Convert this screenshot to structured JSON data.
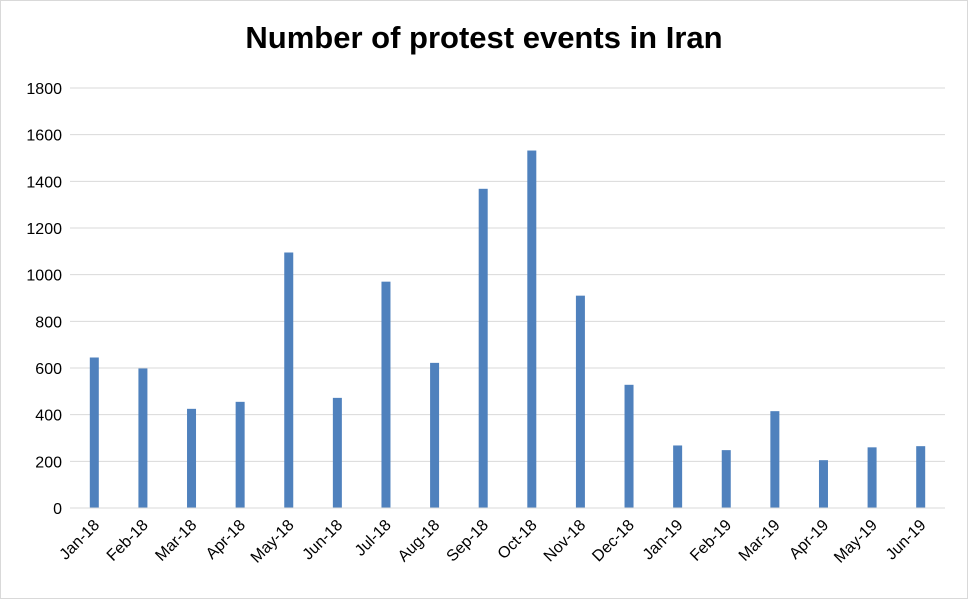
{
  "chart_data": {
    "type": "bar",
    "title": "Number of protest events in Iran",
    "xlabel": "",
    "ylabel": "",
    "categories": [
      "Jan-18",
      "Feb-18",
      "Mar-18",
      "Apr-18",
      "May-18",
      "Jun-18",
      "Jul-18",
      "Aug-18",
      "Sep-18",
      "Oct-18",
      "Nov-18",
      "Dec-18",
      "Jan-19",
      "Feb-19",
      "Mar-19",
      "Apr-19",
      "May-19",
      "Jun-19"
    ],
    "values": [
      645,
      598,
      425,
      455,
      1095,
      472,
      970,
      622,
      1368,
      1532,
      910,
      528,
      268,
      248,
      415,
      205,
      260,
      265
    ],
    "ylim": [
      0,
      1800
    ],
    "yticks": [
      0,
      200,
      400,
      600,
      800,
      1000,
      1200,
      1400,
      1600,
      1800
    ],
    "grid": true,
    "legend": "none",
    "bar_color": "#4f81bd",
    "grid_color": "#d9d9d9"
  }
}
